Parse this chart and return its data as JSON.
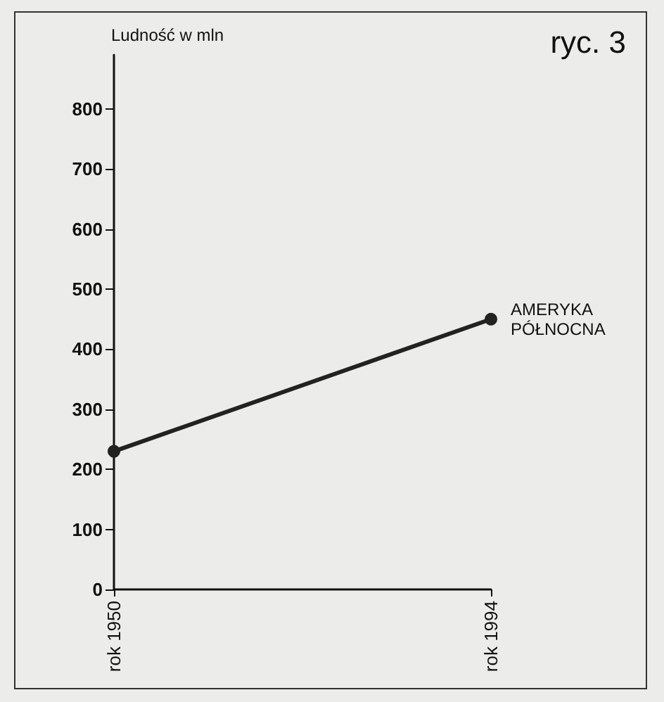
{
  "chart_data": {
    "type": "line",
    "ylabel": "Ludność w mln",
    "annotations": [
      "ryc. 3"
    ],
    "categories": [
      "rok 1950",
      "rok 1994"
    ],
    "series": [
      {
        "name": "AMERYKA\nPÓŁNOCNA",
        "color": "#222222",
        "values": [
          230,
          450
        ]
      }
    ],
    "ylim": [
      0,
      890
    ],
    "yticks": [
      0,
      100,
      200,
      300,
      400,
      500,
      600,
      700,
      800
    ],
    "grid": false,
    "legend": false,
    "marker": "circle",
    "line_style": "solid"
  }
}
